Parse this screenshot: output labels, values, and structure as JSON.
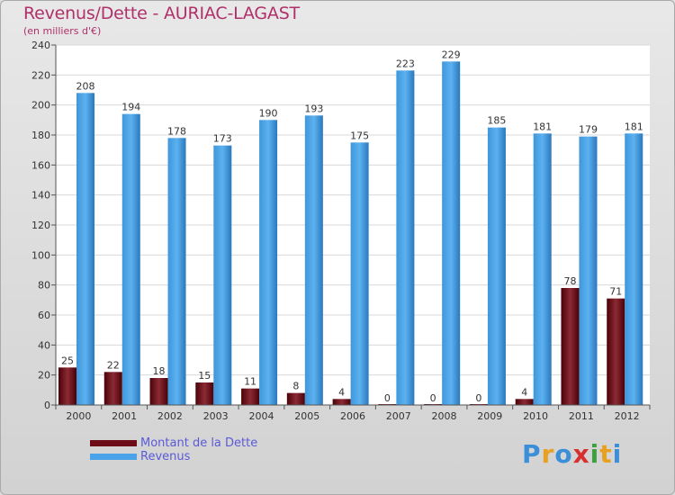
{
  "header": {
    "title": "Revenus/Dette - AURIAC-LAGAST",
    "subtitle": "(en milliers d'€)"
  },
  "legend": {
    "items": [
      {
        "label": "Montant de la Dette",
        "color": "#6b0c16"
      },
      {
        "label": "Revenus",
        "color": "#4aa3e8"
      }
    ]
  },
  "logo": {
    "text": "Proxiti",
    "letters": [
      "P",
      "r",
      "o",
      "x",
      "i",
      "t",
      "i"
    ],
    "colors": [
      "#3a8fd8",
      "#e8a020",
      "#3a8fd8",
      "#d83030",
      "#40a040",
      "#e8a020",
      "#3a8fd8"
    ]
  },
  "chart_data": {
    "type": "bar",
    "title": "Revenus/Dette - AURIAC-LAGAST",
    "ylabel": "(en milliers d'€)",
    "xlabel": "",
    "ylim": [
      0,
      240
    ],
    "yticks": [
      0,
      20,
      40,
      60,
      80,
      100,
      120,
      140,
      160,
      180,
      200,
      220,
      240
    ],
    "grid": true,
    "categories": [
      "2000",
      "2001",
      "2002",
      "2003",
      "2004",
      "2005",
      "2006",
      "2007",
      "2008",
      "2009",
      "2010",
      "2011",
      "2012"
    ],
    "series": [
      {
        "name": "Montant de la Dette",
        "color": "#6b0c16",
        "values": [
          25,
          22,
          18,
          15,
          11,
          8,
          4,
          0,
          0,
          0,
          4,
          78,
          71
        ]
      },
      {
        "name": "Revenus",
        "color": "#4aa3e8",
        "values": [
          208,
          194,
          178,
          173,
          190,
          193,
          175,
          223,
          229,
          185,
          181,
          179,
          181
        ]
      }
    ]
  }
}
